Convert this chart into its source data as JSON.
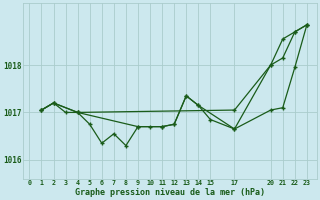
{
  "bg_color": "#cce8ee",
  "grid_color": "#aacccc",
  "line_color": "#1a5c1a",
  "marker_color": "#1a5c1a",
  "series1_x": [
    1,
    2,
    4,
    17,
    20,
    21,
    22,
    23
  ],
  "series1_y": [
    1017.05,
    1017.2,
    1017.0,
    1017.05,
    1018.0,
    1018.55,
    1018.7,
    1018.85
  ],
  "series2_x": [
    1,
    2,
    3,
    4,
    5,
    6,
    7,
    8,
    9,
    10,
    11,
    12,
    13,
    14,
    15,
    17,
    20,
    21,
    22,
    23
  ],
  "series2_y": [
    1017.05,
    1017.2,
    1017.0,
    1017.0,
    1016.75,
    1016.35,
    1016.55,
    1016.3,
    1016.7,
    1016.7,
    1016.7,
    1016.75,
    1017.35,
    1017.15,
    1016.85,
    1016.65,
    1017.05,
    1017.1,
    1017.95,
    1018.85
  ],
  "series3_x": [
    1,
    2,
    4,
    9,
    11,
    12,
    13,
    14,
    17,
    20,
    21,
    22,
    23
  ],
  "series3_y": [
    1017.05,
    1017.2,
    1017.0,
    1016.7,
    1016.7,
    1016.75,
    1017.35,
    1017.15,
    1016.65,
    1018.0,
    1018.15,
    1018.7,
    1018.85
  ],
  "xtick_positions": [
    0,
    1,
    2,
    3,
    4,
    5,
    6,
    7,
    8,
    9,
    10,
    11,
    12,
    13,
    14,
    15,
    17,
    20,
    21,
    22,
    23
  ],
  "xtick_labels": [
    "0",
    "1",
    "2",
    "3",
    "4",
    "5",
    "6",
    "7",
    "8",
    "9",
    "10",
    "11",
    "12",
    "13",
    "14",
    "15",
    "17",
    "20",
    "21",
    "22",
    "23"
  ],
  "yticks": [
    1016,
    1017,
    1018
  ],
  "ylim": [
    1015.6,
    1019.3
  ],
  "xlim": [
    -0.5,
    23.8
  ],
  "xlabel": "Graphe pression niveau de la mer (hPa)"
}
